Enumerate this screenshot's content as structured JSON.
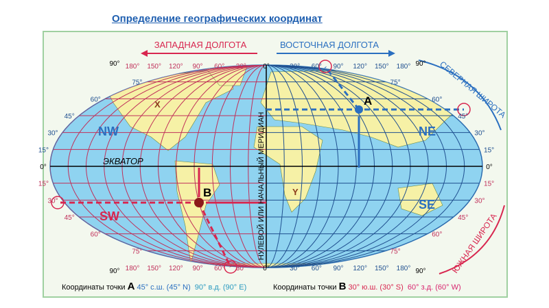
{
  "title": "Определение географических координат",
  "map": {
    "west_longitude_label": "ЗАПАДНАЯ ДОЛГОТА",
    "east_longitude_label": "ВОСТОЧНАЯ ДОЛГОТА",
    "north_latitude_label": "СЕВЕРНАЯ ШИРОТА",
    "south_latitude_label": "ЮЖНАЯ ШИРОТА",
    "equator_label": "ЭКВАТОР",
    "prime_meridian_label": "НУЛЕВОЙ ИЛИ НАЧАЛЬНЫЙ МЕРИДИАН",
    "west_longitudes": [
      "180°",
      "150°",
      "120°",
      "90°",
      "60°",
      "30°"
    ],
    "east_longitudes": [
      "30°",
      "60°",
      "90°",
      "120°",
      "150°",
      "180°"
    ],
    "zero_meridian": "0°",
    "corner_90": "90°",
    "north_latitudes": [
      "75°",
      "60°",
      "45°",
      "30°",
      "15°"
    ],
    "south_latitudes": [
      "15°",
      "30°",
      "45°",
      "60°",
      "75°"
    ],
    "zero_latitude": "0°",
    "quadrants": {
      "nw": "NW",
      "ne": "NE",
      "sw": "SW",
      "se": "SE"
    },
    "points": {
      "a": "A",
      "b": "B",
      "x": "X",
      "y": "Y"
    },
    "colors": {
      "ocean": "#8fd3f0",
      "land": "#f6f1a6",
      "west": "#d8264f",
      "east": "#2a6fc0",
      "frame": "#9fd0a0"
    }
  },
  "caption": {
    "a_prefix": "Координаты точки",
    "a_letter": "A",
    "a_lat": "45° с.ш. (45° N)",
    "a_lon": "90° в.д. (90° E)",
    "b_prefix": "Координаты точки",
    "b_letter": "B",
    "b_lat": "30° ю.ш. (30° S)",
    "b_lon": "60° з.д. (60° W)"
  }
}
